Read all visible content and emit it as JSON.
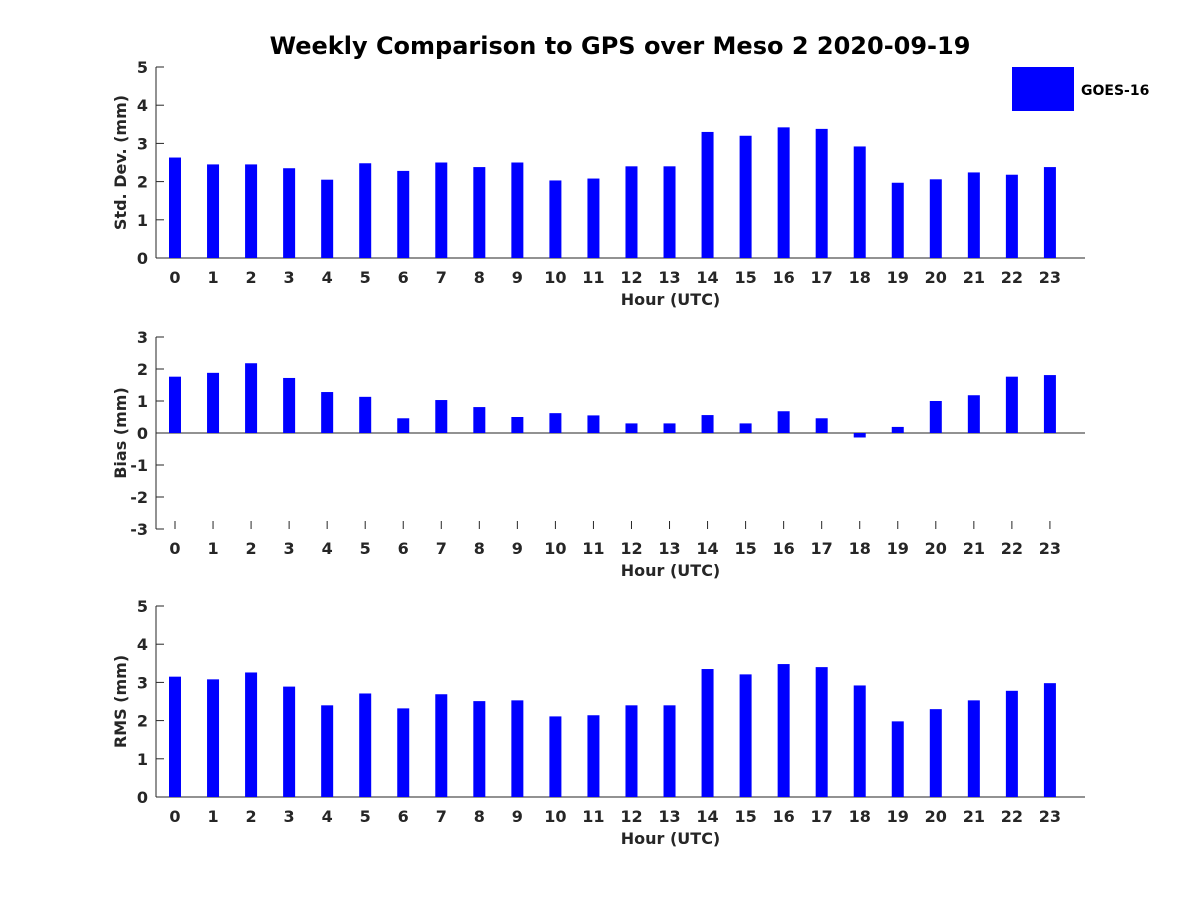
{
  "title": "Weekly Comparison to GPS over Meso 2 2020-09-19",
  "colors": {
    "bar": "#0000ff",
    "axis": "#262626"
  },
  "legend": {
    "label": "GOES-16",
    "position": "top-right"
  },
  "chart_data": [
    {
      "type": "bar",
      "xlabel": "Hour (UTC)",
      "ylabel": "Std. Dev. (mm)",
      "ylim": [
        0,
        5
      ],
      "yticks": [
        "0",
        "1",
        "2",
        "3",
        "4",
        "5"
      ],
      "categories": [
        "0",
        "1",
        "2",
        "3",
        "4",
        "5",
        "6",
        "7",
        "8",
        "9",
        "10",
        "11",
        "12",
        "13",
        "14",
        "15",
        "16",
        "17",
        "18",
        "19",
        "20",
        "21",
        "22",
        "23"
      ],
      "series": [
        {
          "name": "GOES-16",
          "values": [
            2.63,
            2.45,
            2.45,
            2.35,
            2.05,
            2.48,
            2.28,
            2.5,
            2.38,
            2.5,
            2.03,
            2.08,
            2.4,
            2.4,
            3.3,
            3.2,
            3.42,
            3.38,
            2.92,
            1.97,
            2.06,
            2.24,
            2.18,
            2.38
          ]
        }
      ]
    },
    {
      "type": "bar",
      "xlabel": "Hour (UTC)",
      "ylabel": "Bias (mm)",
      "ylim": [
        -3,
        3
      ],
      "yticks": [
        "-3",
        "-2",
        "-1",
        "0",
        "1",
        "2",
        "3"
      ],
      "categories": [
        "0",
        "1",
        "2",
        "3",
        "4",
        "5",
        "6",
        "7",
        "8",
        "9",
        "10",
        "11",
        "12",
        "13",
        "14",
        "15",
        "16",
        "17",
        "18",
        "19",
        "20",
        "21",
        "22",
        "23"
      ],
      "series": [
        {
          "name": "GOES-16",
          "values": [
            1.76,
            1.88,
            2.18,
            1.72,
            1.28,
            1.13,
            0.46,
            1.03,
            0.81,
            0.5,
            0.62,
            0.55,
            0.3,
            0.3,
            0.56,
            0.3,
            0.68,
            0.46,
            -0.14,
            0.19,
            1.0,
            1.18,
            1.76,
            1.81
          ]
        }
      ]
    },
    {
      "type": "bar",
      "xlabel": "Hour (UTC)",
      "ylabel": "RMS (mm)",
      "ylim": [
        0,
        5
      ],
      "yticks": [
        "0",
        "1",
        "2",
        "3",
        "4",
        "5"
      ],
      "categories": [
        "0",
        "1",
        "2",
        "3",
        "4",
        "5",
        "6",
        "7",
        "8",
        "9",
        "10",
        "11",
        "12",
        "13",
        "14",
        "15",
        "16",
        "17",
        "18",
        "19",
        "20",
        "21",
        "22",
        "23"
      ],
      "series": [
        {
          "name": "GOES-16",
          "values": [
            3.15,
            3.08,
            3.26,
            2.89,
            2.4,
            2.71,
            2.32,
            2.69,
            2.51,
            2.53,
            2.11,
            2.14,
            2.4,
            2.4,
            3.35,
            3.21,
            3.48,
            3.4,
            2.92,
            1.98,
            2.3,
            2.53,
            2.78,
            2.98
          ]
        }
      ]
    }
  ]
}
